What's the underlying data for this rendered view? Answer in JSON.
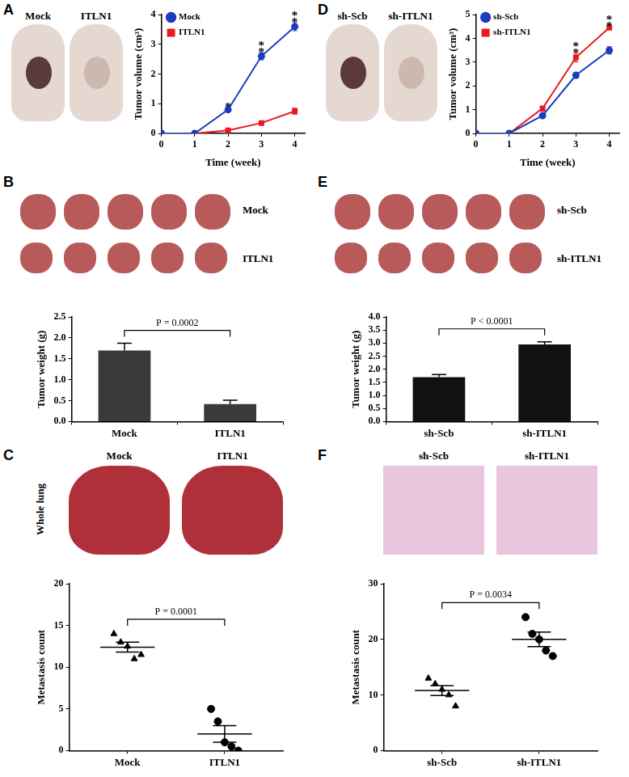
{
  "chart_data": [
    {
      "panel": "A",
      "type": "line",
      "image_labels": [
        "Mock",
        "ITLN1"
      ],
      "x": [
        0,
        1,
        2,
        3,
        4
      ],
      "xlim": [
        0,
        4.3
      ],
      "xticks": [
        0,
        1,
        2,
        3,
        4
      ],
      "ylim": [
        0,
        4
      ],
      "yticks": [
        0,
        1,
        2,
        3,
        4
      ],
      "x_label": "Time (week)",
      "y_label": "Tumor volume (cm³)",
      "legend": "top-left",
      "grid": false,
      "series": [
        {
          "name": "Mock",
          "color": "#1a3cc0",
          "marker": "circle",
          "values": [
            0,
            0,
            0.8,
            2.6,
            3.6
          ],
          "errors": [
            0,
            0,
            0.08,
            0.12,
            0.14
          ]
        },
        {
          "name": "ITLN1",
          "color": "#e8191f",
          "marker": "square",
          "values": [
            0,
            0,
            0.1,
            0.35,
            0.75
          ],
          "errors": [
            0,
            0,
            0.03,
            0.05,
            0.1
          ]
        }
      ],
      "annotations": [
        {
          "x": 2,
          "text": "*"
        },
        {
          "x": 3,
          "text": "**"
        },
        {
          "x": 4,
          "text": "**"
        }
      ]
    },
    {
      "panel": "B",
      "type": "bar",
      "image_labels": [
        "Mock",
        "ITLN1"
      ],
      "categories": [
        "Mock",
        "ITLN1"
      ],
      "values": [
        1.7,
        0.42
      ],
      "errors": [
        0.17,
        0.09
      ],
      "color": "#3a3a3a",
      "ylim": [
        0,
        2.5
      ],
      "yticks": [
        {
          "value": 0,
          "label": "0.0"
        },
        0.5,
        {
          "value": 1,
          "label": "1.0"
        },
        1.5,
        {
          "value": 2,
          "label": "2.0"
        },
        2.5
      ],
      "y_label": "Tumor weight (g)",
      "grid": false,
      "p_value": "P = 0.0002"
    },
    {
      "panel": "C",
      "type": "dot",
      "image_labels": [
        "Mock",
        "ITLN1"
      ],
      "image_title": "Whole lung",
      "categories": [
        "Mock",
        "ITLN1"
      ],
      "groups": [
        {
          "marker": "triangle",
          "values": [
            14,
            13,
            12.5,
            11,
            11.5
          ],
          "mean": 12.4,
          "error": 0.6
        },
        {
          "marker": "circle",
          "values": [
            5,
            3.5,
            1,
            0.5,
            0
          ],
          "mean": 2,
          "error": 1.0
        }
      ],
      "ylim": [
        0,
        20
      ],
      "yticks": [
        0,
        5,
        10,
        15,
        20
      ],
      "y_label": "Metastasis count",
      "grid": false,
      "p_value": "P = 0.0001"
    },
    {
      "panel": "D",
      "type": "line",
      "image_labels": [
        "sh-Scb",
        "sh-ITLN1"
      ],
      "x": [
        0,
        1,
        2,
        3,
        4
      ],
      "xlim": [
        0,
        4.3
      ],
      "xticks": [
        0,
        1,
        2,
        3,
        4
      ],
      "ylim": [
        0,
        5
      ],
      "yticks": [
        0,
        1,
        2,
        3,
        4,
        5
      ],
      "x_label": "Time (week)",
      "y_label": "Tumor volume (cm³)",
      "legend": "top-left",
      "grid": false,
      "series": [
        {
          "name": "sh-Scb",
          "color": "#1a3cc0",
          "marker": "circle",
          "values": [
            0,
            0,
            0.75,
            2.45,
            3.5
          ],
          "errors": [
            0,
            0,
            0.08,
            0.12,
            0.15
          ]
        },
        {
          "name": "sh-ITLN1",
          "color": "#e8191f",
          "marker": "square",
          "values": [
            0,
            0,
            1.05,
            3.2,
            4.45
          ],
          "errors": [
            0,
            0,
            0.1,
            0.18,
            0.05
          ]
        }
      ],
      "annotations": [
        {
          "x": 3,
          "text": "**"
        },
        {
          "x": 4,
          "text": "**"
        }
      ]
    },
    {
      "panel": "E",
      "type": "bar",
      "image_labels": [
        "sh-Scb",
        "sh-ITLN1"
      ],
      "categories": [
        "sh-Scb",
        "sh-ITLN1"
      ],
      "values": [
        1.7,
        2.95
      ],
      "errors": [
        0.1,
        0.1
      ],
      "color": "#111111",
      "ylim": [
        0,
        4
      ],
      "yticks": [
        {
          "value": 0,
          "label": "0.0"
        },
        0.5,
        {
          "value": 1,
          "label": "1.0"
        },
        1.5,
        {
          "value": 2,
          "label": "2.0"
        },
        2.5,
        {
          "value": 3,
          "label": "3.0"
        },
        3.5,
        {
          "value": 4,
          "label": "4.0"
        }
      ],
      "y_label": "Tumor weight (g)",
      "grid": false,
      "p_value": "P < 0.0001"
    },
    {
      "panel": "F",
      "type": "dot",
      "image_labels": [
        "sh-Scb",
        "sh-ITLN1"
      ],
      "categories": [
        "sh-Scb",
        "sh-ITLN1"
      ],
      "groups": [
        {
          "marker": "triangle",
          "values": [
            13,
            12,
            11,
            10,
            8
          ],
          "mean": 10.8,
          "error": 0.9
        },
        {
          "marker": "circle",
          "values": [
            24,
            21,
            20,
            18,
            17
          ],
          "mean": 20,
          "error": 1.3
        }
      ],
      "ylim": [
        0,
        30
      ],
      "yticks": [
        0,
        10,
        20,
        30
      ],
      "y_label": "Metastasis count",
      "grid": false,
      "p_value": "P = 0.0034"
    }
  ]
}
